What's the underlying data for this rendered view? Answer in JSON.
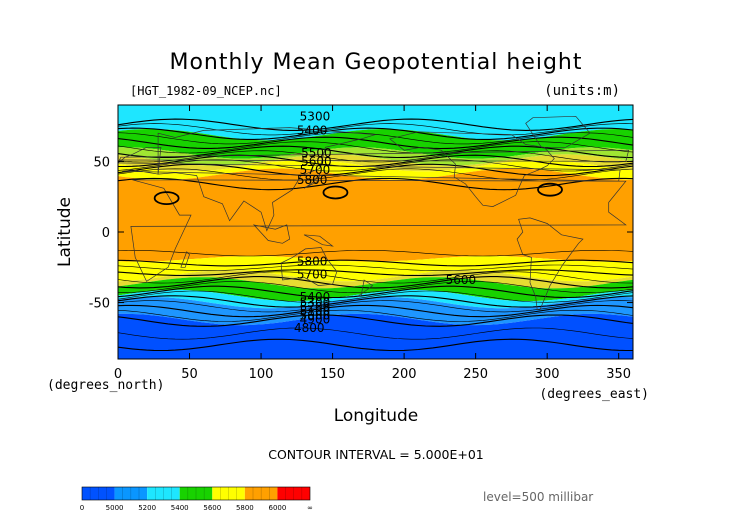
{
  "chart_data": {
    "type": "heatmap",
    "title": "Monthly Mean Geopotential height",
    "file_label": "[HGT_1982-09_NCEP.nc]",
    "units_label": "(units:m)",
    "xlabel": "Longitude",
    "ylabel": "Latitude",
    "x_units": "(degrees_east)",
    "y_units": "(degrees_north)",
    "xlim": [
      0,
      360
    ],
    "ylim": [
      -90,
      90
    ],
    "x_ticks": [
      0,
      50,
      100,
      150,
      200,
      250,
      300,
      350
    ],
    "y_ticks": [
      -50,
      0,
      50
    ],
    "contour_interval_text": "CONTOUR INTERVAL = 5.000E+01",
    "level_text": "level=500 millibar",
    "contour_labels": [
      {
        "text": "5300",
        "x": 127,
        "y": 82
      },
      {
        "text": "5400",
        "x": 125,
        "y": 72
      },
      {
        "text": "5500",
        "x": 128,
        "y": 56
      },
      {
        "text": "5600",
        "x": 128,
        "y": 50
      },
      {
        "text": "5700",
        "x": 127,
        "y": 44
      },
      {
        "text": "5800",
        "x": 125,
        "y": 37
      },
      {
        "text": "5800",
        "x": 125,
        "y": -21
      },
      {
        "text": "5700",
        "x": 125,
        "y": -30
      },
      {
        "text": "5600",
        "x": 229,
        "y": -34
      },
      {
        "text": "5400",
        "x": 127,
        "y": -46
      },
      {
        "text": "5300",
        "x": 127,
        "y": -50
      },
      {
        "text": "5200",
        "x": 127,
        "y": -53
      },
      {
        "text": "5100",
        "x": 127,
        "y": -56
      },
      {
        "text": "5000",
        "x": 127,
        "y": -59
      },
      {
        "text": "4900",
        "x": 127,
        "y": -62
      },
      {
        "text": "4800",
        "x": 123,
        "y": -68
      }
    ],
    "colorbar": {
      "ticks": [
        "0",
        "5000",
        "5200",
        "5400",
        "5600",
        "5800",
        "6000",
        "∞"
      ],
      "colors": [
        "#0052ff",
        "#0a96ff",
        "#1ee6ff",
        "#18d200",
        "#ffff00",
        "#ffa000",
        "#ff0000"
      ]
    },
    "band_colors": {
      "h4800": "#0050ff",
      "h5000": "#1e96ff",
      "h5300": "#1ee6ff",
      "h5400": "#18d200",
      "h5500": "#a0e632",
      "h5600": "#e6dc32",
      "h5700": "#ffff00",
      "h5800": "#ffa000"
    }
  }
}
